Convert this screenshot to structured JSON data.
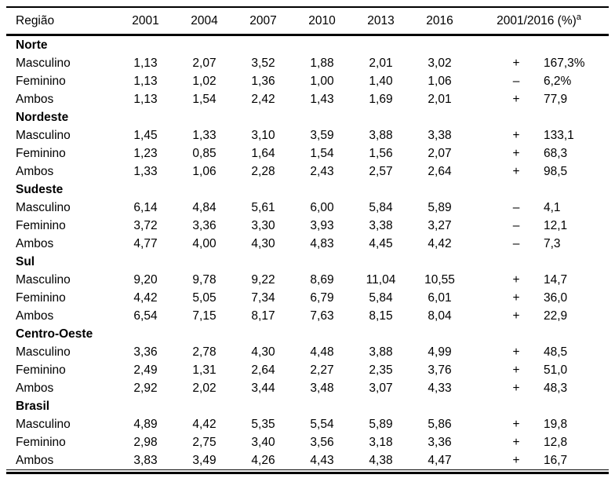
{
  "colors": {
    "text": "#000000",
    "background": "#ffffff",
    "rule": "#000000"
  },
  "table": {
    "header": {
      "region": "Região",
      "years": [
        "2001",
        "2004",
        "2007",
        "2010",
        "2013",
        "2016"
      ],
      "change_label": "2001/2016 (%)",
      "change_sup": "a"
    },
    "sections": [
      {
        "name": "Norte",
        "rows": [
          {
            "label": "Masculino",
            "values": [
              "1,13",
              "2,07",
              "3,52",
              "1,88",
              "2,01",
              "3,02"
            ],
            "sign": "+",
            "change": "167,3%"
          },
          {
            "label": "Feminino",
            "values": [
              "1,13",
              "1,02",
              "1,36",
              "1,00",
              "1,40",
              "1,06"
            ],
            "sign": "–",
            "change": "6,2%"
          },
          {
            "label": "Ambos",
            "values": [
              "1,13",
              "1,54",
              "2,42",
              "1,43",
              "1,69",
              "2,01"
            ],
            "sign": "+",
            "change": "77,9"
          }
        ]
      },
      {
        "name": "Nordeste",
        "rows": [
          {
            "label": "Masculino",
            "values": [
              "1,45",
              "1,33",
              "3,10",
              "3,59",
              "3,88",
              "3,38"
            ],
            "sign": "+",
            "change": "133,1"
          },
          {
            "label": "Feminino",
            "values": [
              "1,23",
              "0,85",
              "1,64",
              "1,54",
              "1,56",
              "2,07"
            ],
            "sign": "+",
            "change": "68,3"
          },
          {
            "label": "Ambos",
            "values": [
              "1,33",
              "1,06",
              "2,28",
              "2,43",
              "2,57",
              "2,64"
            ],
            "sign": "+",
            "change": "98,5"
          }
        ]
      },
      {
        "name": "Sudeste",
        "rows": [
          {
            "label": "Masculino",
            "values": [
              "6,14",
              "4,84",
              "5,61",
              "6,00",
              "5,84",
              "5,89"
            ],
            "sign": "–",
            "change": "4,1"
          },
          {
            "label": "Feminino",
            "values": [
              "3,72",
              "3,36",
              "3,30",
              "3,93",
              "3,38",
              "3,27"
            ],
            "sign": "–",
            "change": "12,1"
          },
          {
            "label": "Ambos",
            "values": [
              "4,77",
              "4,00",
              "4,30",
              "4,83",
              "4,45",
              "4,42"
            ],
            "sign": "–",
            "change": "7,3"
          }
        ]
      },
      {
        "name": "Sul",
        "rows": [
          {
            "label": "Masculino",
            "values": [
              "9,20",
              "9,78",
              "9,22",
              "8,69",
              "11,04",
              "10,55"
            ],
            "sign": "+",
            "change": "14,7"
          },
          {
            "label": "Feminino",
            "values": [
              "4,42",
              "5,05",
              "7,34",
              "6,79",
              "5,84",
              "6,01"
            ],
            "sign": "+",
            "change": "36,0"
          },
          {
            "label": "Ambos",
            "values": [
              "6,54",
              "7,15",
              "8,17",
              "7,63",
              "8,15",
              "8,04"
            ],
            "sign": "+",
            "change": "22,9"
          }
        ]
      },
      {
        "name": "Centro-Oeste",
        "rows": [
          {
            "label": "Masculino",
            "values": [
              "3,36",
              "2,78",
              "4,30",
              "4,48",
              "3,88",
              "4,99"
            ],
            "sign": "+",
            "change": "48,5"
          },
          {
            "label": "Feminino",
            "values": [
              "2,49",
              "1,31",
              "2,64",
              "2,27",
              "2,35",
              "3,76"
            ],
            "sign": "+",
            "change": "51,0"
          },
          {
            "label": "Ambos",
            "values": [
              "2,92",
              "2,02",
              "3,44",
              "3,48",
              "3,07",
              "4,33"
            ],
            "sign": "+",
            "change": "48,3"
          }
        ]
      },
      {
        "name": "Brasil",
        "rows": [
          {
            "label": "Masculino",
            "values": [
              "4,89",
              "4,42",
              "5,35",
              "5,54",
              "5,89",
              "5,86"
            ],
            "sign": "+",
            "change": "19,8"
          },
          {
            "label": "Feminino",
            "values": [
              "2,98",
              "2,75",
              "3,40",
              "3,56",
              "3,18",
              "3,36"
            ],
            "sign": "+",
            "change": "12,8"
          },
          {
            "label": "Ambos",
            "values": [
              "3,83",
              "3,49",
              "4,26",
              "4,43",
              "4,38",
              "4,47"
            ],
            "sign": "+",
            "change": "16,7"
          }
        ]
      }
    ]
  }
}
